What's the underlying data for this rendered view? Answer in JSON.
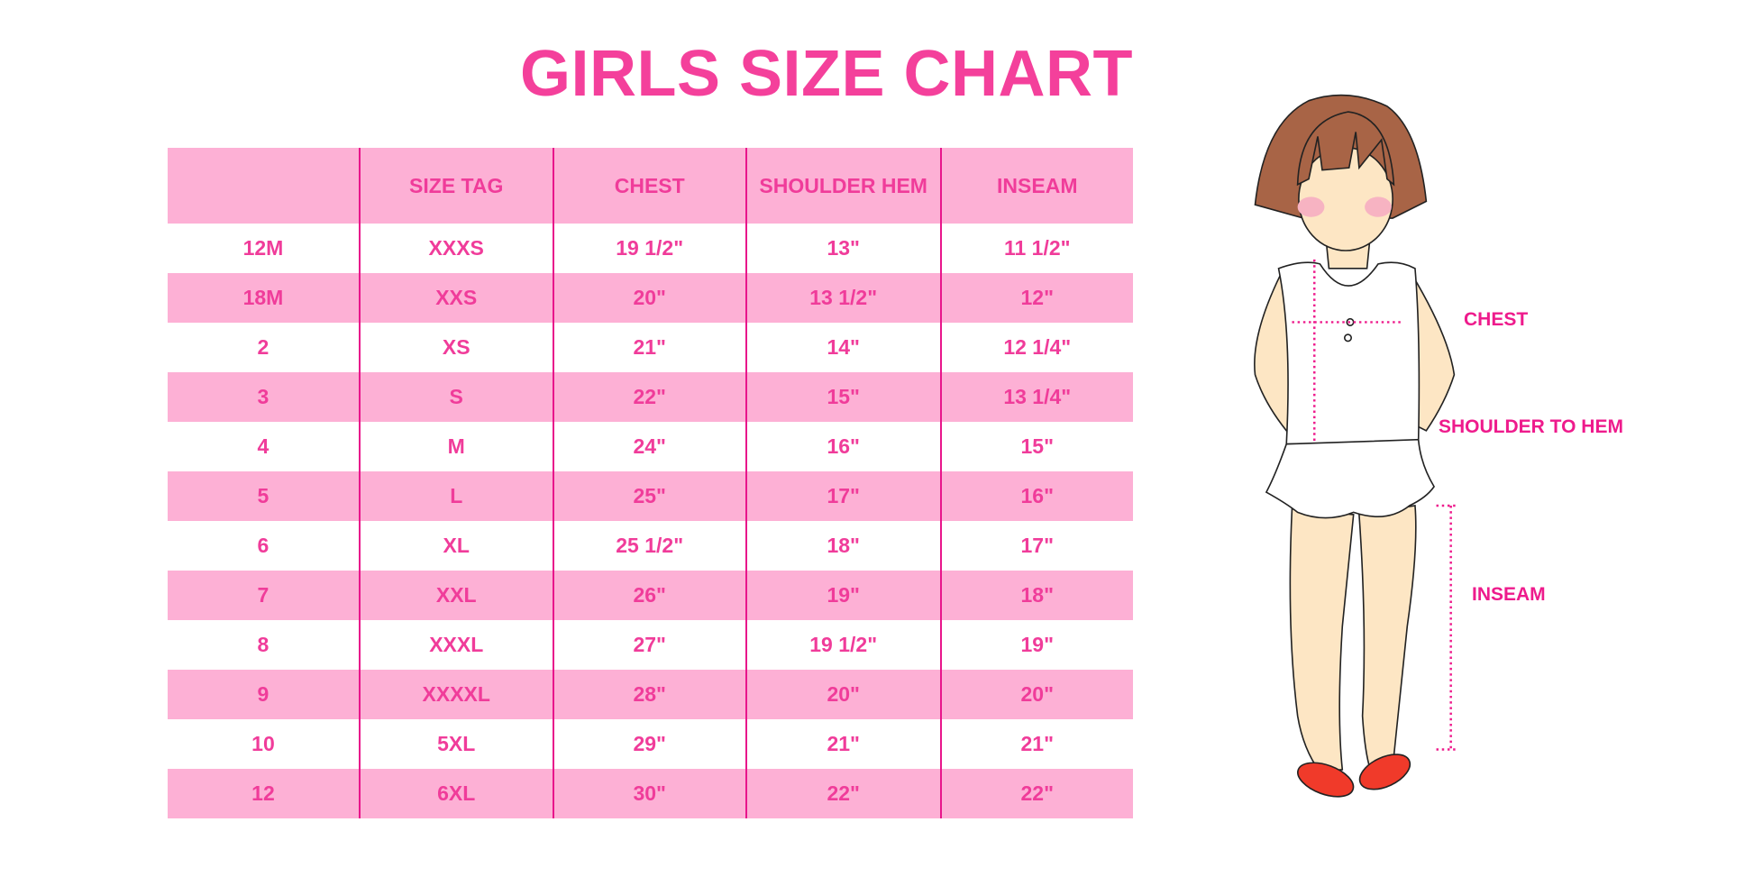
{
  "title": "GIRLS SIZE CHART",
  "table": {
    "headers": [
      "",
      "SIZE TAG",
      "CHEST",
      "SHOULDER HEM",
      "INSEAM"
    ],
    "rows": [
      [
        "12M",
        "XXXS",
        "19 1/2\"",
        "13\"",
        "11 1/2\""
      ],
      [
        "18M",
        "XXS",
        "20\"",
        "13 1/2\"",
        "12\""
      ],
      [
        "2",
        "XS",
        "21\"",
        "14\"",
        "12 1/4\""
      ],
      [
        "3",
        "S",
        "22\"",
        "15\"",
        "13 1/4\""
      ],
      [
        "4",
        "M",
        "24\"",
        "16\"",
        "15\""
      ],
      [
        "5",
        "L",
        "25\"",
        "17\"",
        "16\""
      ],
      [
        "6",
        "XL",
        "25 1/2\"",
        "18\"",
        "17\""
      ],
      [
        "7",
        "XXL",
        "26\"",
        "19\"",
        "18\""
      ],
      [
        "8",
        "XXXL",
        "27\"",
        "19 1/2\"",
        "19\""
      ],
      [
        "9",
        "XXXXL",
        "28\"",
        "20\"",
        "20\""
      ],
      [
        "10",
        "5XL",
        "29\"",
        "21\"",
        "21\""
      ],
      [
        "12",
        "6XL",
        "30\"",
        "22\"",
        "22\""
      ]
    ]
  },
  "figure": {
    "labels": {
      "chest": "CHEST",
      "shoulder": "SHOULDER TO HEM",
      "inseam": "INSEAM"
    }
  },
  "colors": {
    "accent": "#f03c9a",
    "stripe": "#fdb0d5",
    "divider": "#e8158b"
  }
}
